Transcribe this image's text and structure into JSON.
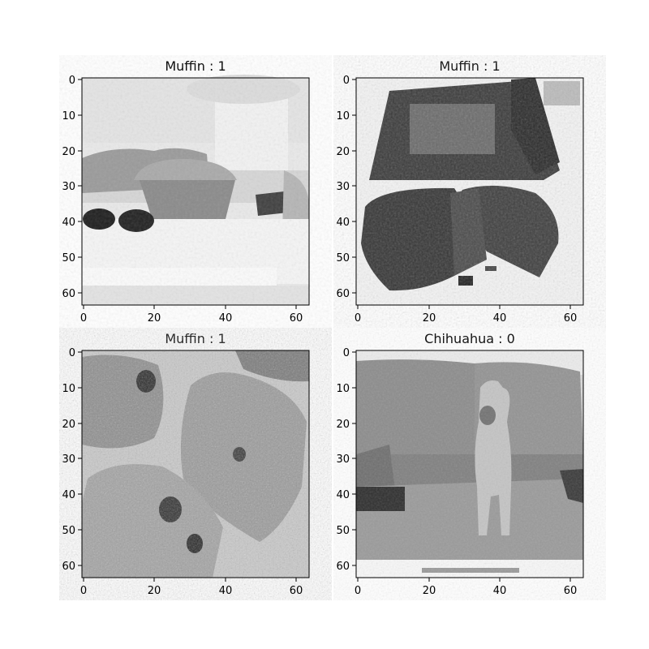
{
  "figure": {
    "panels": [
      {
        "title": "Muffin : 1",
        "image_content": "muffin",
        "x_ticks": [
          "0",
          "20",
          "40",
          "60"
        ],
        "y_ticks": [
          "0",
          "10",
          "20",
          "30",
          "40",
          "50",
          "60"
        ]
      },
      {
        "title": "Muffin : 1",
        "image_content": "muffin",
        "x_ticks": [
          "0",
          "20",
          "40",
          "60"
        ],
        "y_ticks": [
          "0",
          "10",
          "20",
          "30",
          "40",
          "50",
          "60"
        ]
      },
      {
        "title": "Muffin : 1",
        "image_content": "muffin",
        "x_ticks": [
          "0",
          "20",
          "40",
          "60"
        ],
        "y_ticks": [
          "0",
          "10",
          "20",
          "30",
          "40",
          "50",
          "60"
        ]
      },
      {
        "title": "Chihuahua : 0",
        "image_content": "chihuahua",
        "x_ticks": [
          "0",
          "20",
          "40",
          "60"
        ],
        "y_ticks": [
          "0",
          "10",
          "20",
          "30",
          "40",
          "50",
          "60"
        ]
      }
    ]
  }
}
